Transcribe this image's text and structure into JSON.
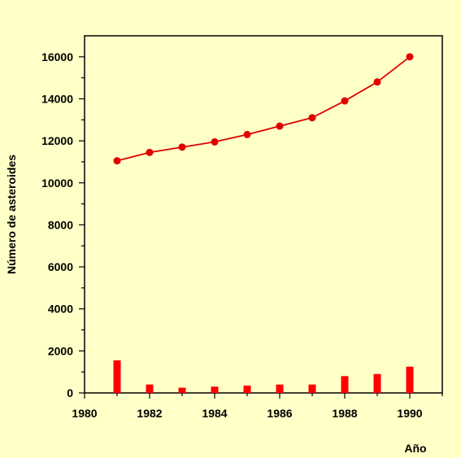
{
  "chart_data": {
    "type": "line+bar",
    "xlabel": "Año",
    "ylabel": "Número de asteroides",
    "xlim": [
      1980,
      1991
    ],
    "ylim": [
      0,
      17000
    ],
    "x_ticks": [
      1980,
      1982,
      1984,
      1986,
      1988,
      1990
    ],
    "y_ticks": [
      0,
      2000,
      4000,
      6000,
      8000,
      10000,
      12000,
      14000,
      16000
    ],
    "grid": false,
    "series": [
      {
        "type": "line",
        "color": "#E00000",
        "x": [
          1981,
          1982,
          1983,
          1984,
          1985,
          1986,
          1987,
          1988,
          1989,
          1990
        ],
        "values": [
          11050,
          11450,
          11700,
          11950,
          12300,
          12700,
          13100,
          13900,
          14800,
          16000
        ]
      },
      {
        "type": "bar",
        "color": "#FF0000",
        "x": [
          1981,
          1982,
          1983,
          1984,
          1985,
          1986,
          1987,
          1988,
          1989,
          1990
        ],
        "values": [
          1550,
          400,
          250,
          300,
          350,
          400,
          400,
          800,
          900,
          1250
        ]
      }
    ]
  }
}
